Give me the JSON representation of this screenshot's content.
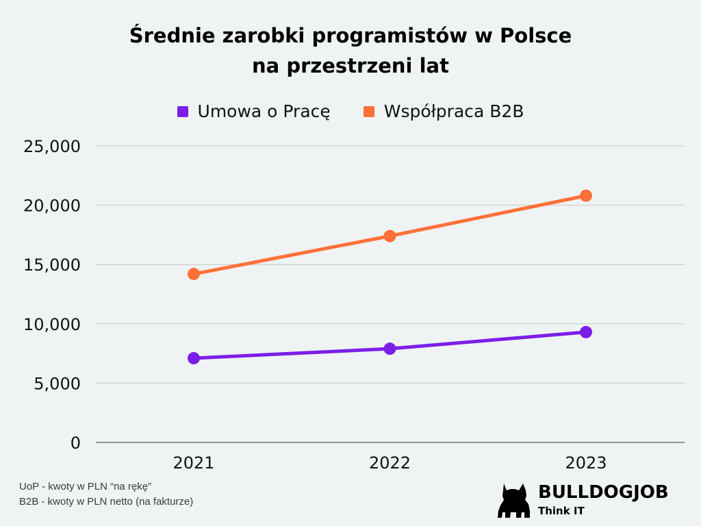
{
  "title_line1": "Średnie zarobki programistów w Polsce",
  "title_line2": "na przestrzeni lat",
  "footnote": {
    "line1": "UoP - kwoty w PLN “na rękę”",
    "line2": "B2B - kwoty w PLN netto (na fakturze)"
  },
  "logo": {
    "brand": "BULLDOGJOB",
    "tagline": "Think IT"
  },
  "colors": {
    "uop": "#7b1fe8",
    "b2b": "#ff7139",
    "grid": "#c4c8c8",
    "axis": "#777777",
    "background": "#eff3f3"
  },
  "chart_data": {
    "type": "line",
    "title": "Średnie zarobki programistów w Polsce na przestrzeni lat",
    "categories": [
      "2021",
      "2022",
      "2023"
    ],
    "series": [
      {
        "name": "Umowa o Pracę",
        "color": "#7b1fe8",
        "values": [
          7100,
          7900,
          9300
        ]
      },
      {
        "name": "Współpraca B2B",
        "color": "#ff7139",
        "values": [
          14200,
          17400,
          20800
        ]
      }
    ],
    "ylim": [
      0,
      25000
    ],
    "yticks": [
      0,
      5000,
      10000,
      15000,
      20000,
      25000
    ],
    "ytick_labels": [
      "0",
      "5,000",
      "10,000",
      "15,000",
      "20,000",
      "25,000"
    ],
    "grid": "horizontal",
    "legend": "top-center",
    "xlabel": "",
    "ylabel": ""
  }
}
